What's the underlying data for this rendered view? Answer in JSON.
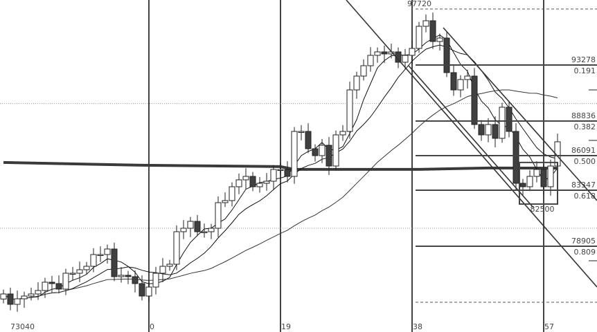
{
  "chart_data": {
    "type": "candlestick",
    "title": "",
    "price_range": [
      72105,
      98433
    ],
    "colors": {
      "up": "#ffffff",
      "down": "#404040",
      "outline": "#222222",
      "grid": "#444444"
    },
    "closes": [
      75122,
      74299,
      74738,
      74957,
      75122,
      75396,
      76054,
      75945,
      75506,
      76767,
      76767,
      77042,
      77316,
      78248,
      78248,
      78687,
      76493,
      76603,
      76493,
      75945,
      74957,
      75670,
      76767,
      77316,
      77480,
      80058,
      80333,
      80881,
      80058,
      80058,
      80333,
      82362,
      82527,
      83624,
      84172,
      84446,
      83624,
      83898,
      84062,
      84995,
      84995,
      84446,
      88012,
      88012,
      86640,
      86092,
      86915,
      85269,
      87737,
      88012,
      91303,
      92400,
      93222,
      94045,
      94319,
      94155,
      94319,
      93497,
      94045,
      94594,
      96349,
      96788,
      95142,
      95416,
      92674,
      91303,
      92125,
      92400,
      88560,
      87737,
      88560,
      87463,
      89931,
      88012,
      83898,
      83624,
      84446,
      84995,
      83624,
      85269,
      87189
    ],
    "moving_averages": [
      {
        "period": 5,
        "color": "#111111"
      },
      {
        "period": 10,
        "color": "#111111"
      },
      {
        "period": 30,
        "color": "#333333"
      }
    ],
    "thick_ma": {
      "color": "#3a3a3a",
      "points": [
        [
          0,
          85550
        ],
        [
          20,
          85330
        ],
        [
          40,
          85220
        ],
        [
          42,
          85000
        ],
        [
          60,
          85000
        ],
        [
          70,
          85110
        ],
        [
          80,
          85100
        ]
      ]
    },
    "time_labels": [
      {
        "index": 1,
        "text": "73040"
      },
      {
        "index": 21,
        "text": "0"
      },
      {
        "index": 40,
        "text": "19"
      },
      {
        "index": 59,
        "text": "38"
      },
      {
        "index": 78,
        "text": "57"
      }
    ],
    "fibonacci": {
      "high_label": "97720",
      "high": 97720,
      "low": 74463,
      "levels": [
        {
          "ratio": 0.191,
          "price_label": "93278",
          "ratio_label": "0.191"
        },
        {
          "ratio": 0.382,
          "price_label": "88836",
          "ratio_label": "0.382"
        },
        {
          "ratio": 0.5,
          "price_label": "86091",
          "ratio_label": "0.500"
        },
        {
          "ratio": 0.618,
          "price_label": "83347",
          "ratio_label": "0.618"
        },
        {
          "ratio": 0.809,
          "price_label": "78905",
          "ratio_label": "0.809"
        }
      ]
    },
    "box": {
      "from_index": 75,
      "to_index": 80,
      "top": 85550,
      "bottom": 82250,
      "label": "82500"
    },
    "channel_lines": [
      {
        "from": [
          49.5,
          98433
        ],
        "to": [
          85.7,
          75670
        ]
      },
      {
        "from": [
          63.5,
          96240
        ],
        "to": [
          85.7,
          82527
        ]
      },
      {
        "from": [
          58.5,
          93222
        ],
        "to": [
          76.5,
          81978
        ]
      }
    ],
    "dotted_levels": [
      90225,
      80333
    ]
  }
}
